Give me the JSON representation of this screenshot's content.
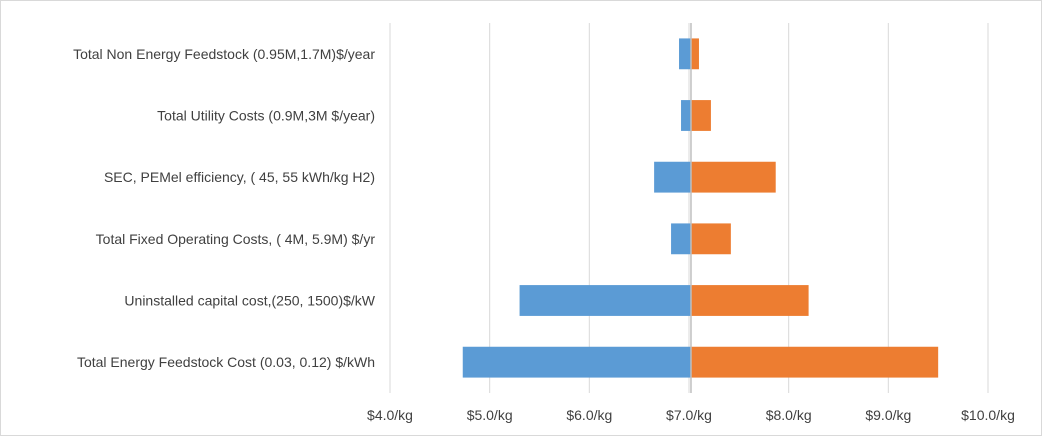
{
  "chart_data": {
    "type": "bar",
    "orientation": "horizontal",
    "subtype": "tornado",
    "categories": [
      "Total Energy Feedstock Cost (0.03, 0.12) $/kWh",
      "Uninstalled capital cost,(250, 1500)$/kW",
      "Total Fixed Operating Costs, ( 4M, 5.9M) $/yr",
      "SEC, PEMel efficiency, ( 45, 55 kWh/kg H2)",
      "Total Utility Costs (0.9M,3M $/year)",
      "Total Non Energy Feedstock (0.95M,1.7M)$/year"
    ],
    "baseline": 7.02,
    "series": [
      {
        "color": "#5b9bd5",
        "values": [
          4.73,
          5.3,
          6.82,
          6.65,
          6.92,
          6.9
        ]
      },
      {
        "color": "#ed7d31",
        "values": [
          9.5,
          8.2,
          7.42,
          7.87,
          7.22,
          7.1
        ]
      }
    ],
    "xlim": [
      4.0,
      10.0
    ],
    "xticks": [
      4,
      5,
      6,
      7,
      8,
      9,
      10
    ],
    "xtick_labels": [
      "$4.0/kg",
      "$5.0/kg",
      "$6.0/kg",
      "$7.0/kg",
      "$8.0/kg",
      "$9.0/kg",
      "$10.0/kg"
    ],
    "grid": true,
    "gridline_color": "#d9d9d9",
    "baseline_color": "#bfbfbf",
    "title": "",
    "xlabel": "",
    "ylabel": ""
  }
}
